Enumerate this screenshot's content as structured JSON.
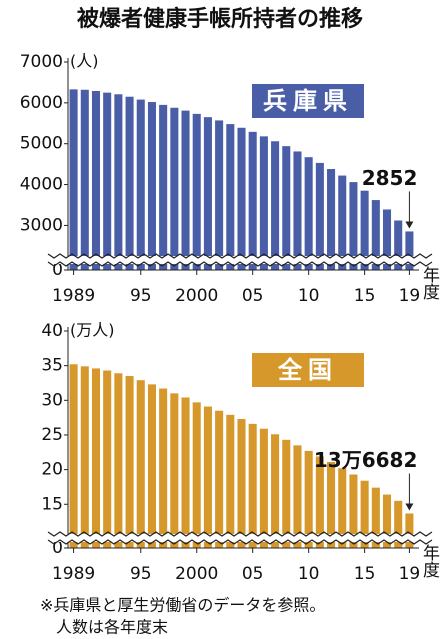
{
  "title": "被爆者健康手帳所持者の推移",
  "chart_data": [
    {
      "type": "bar",
      "label": "兵庫県",
      "unit_label": "(人)",
      "x_label": "年度",
      "color": "#4a5ea8",
      "categories": [
        "1989",
        null,
        null,
        null,
        null,
        null,
        "95",
        null,
        null,
        null,
        null,
        "2000",
        null,
        null,
        null,
        null,
        "05",
        null,
        null,
        null,
        null,
        "10",
        null,
        null,
        null,
        null,
        "15",
        null,
        null,
        null,
        "19"
      ],
      "values": [
        6330,
        6320,
        6290,
        6250,
        6210,
        6150,
        6080,
        6020,
        5950,
        5880,
        5810,
        5730,
        5650,
        5570,
        5480,
        5390,
        5290,
        5180,
        5060,
        4940,
        4810,
        4670,
        4530,
        4380,
        4220,
        4060,
        3850,
        3620,
        3390,
        3120,
        2852
      ],
      "ylim": [
        0,
        7000
      ],
      "y_break": [
        0,
        2300
      ],
      "yticks": [
        0,
        3000,
        4000,
        5000,
        6000,
        7000
      ]
    },
    {
      "type": "bar",
      "label": "全国",
      "unit_label": "(万人)",
      "x_label": "年度",
      "color": "#d6972b",
      "categories": [
        "1989",
        null,
        null,
        null,
        null,
        null,
        "95",
        null,
        null,
        null,
        null,
        "2000",
        null,
        null,
        null,
        null,
        "05",
        null,
        null,
        null,
        null,
        "10",
        null,
        null,
        null,
        null,
        "15",
        null,
        null,
        null,
        "19"
      ],
      "values": [
        35.2,
        34.9,
        34.6,
        34.3,
        33.9,
        33.5,
        32.9,
        32.3,
        31.7,
        31.0,
        30.4,
        29.7,
        29.1,
        28.5,
        27.9,
        27.3,
        26.6,
        25.9,
        25.1,
        24.3,
        23.5,
        22.7,
        21.9,
        21.1,
        20.2,
        19.3,
        18.4,
        17.4,
        16.4,
        15.5,
        13.6682
      ],
      "value_labels": [
        null,
        null,
        null,
        null,
        null,
        null,
        null,
        null,
        null,
        null,
        null,
        null,
        null,
        null,
        null,
        null,
        null,
        null,
        null,
        null,
        null,
        null,
        null,
        null,
        null,
        null,
        null,
        null,
        null,
        null,
        "13万6682"
      ],
      "ylim": [
        0,
        40
      ],
      "y_break": [
        0,
        11
      ],
      "yticks": [
        0,
        15,
        20,
        25,
        30,
        35,
        40
      ]
    }
  ],
  "notes": [
    "※兵庫県と厚生労働省のデータを参照。",
    "人数は各年度末"
  ]
}
